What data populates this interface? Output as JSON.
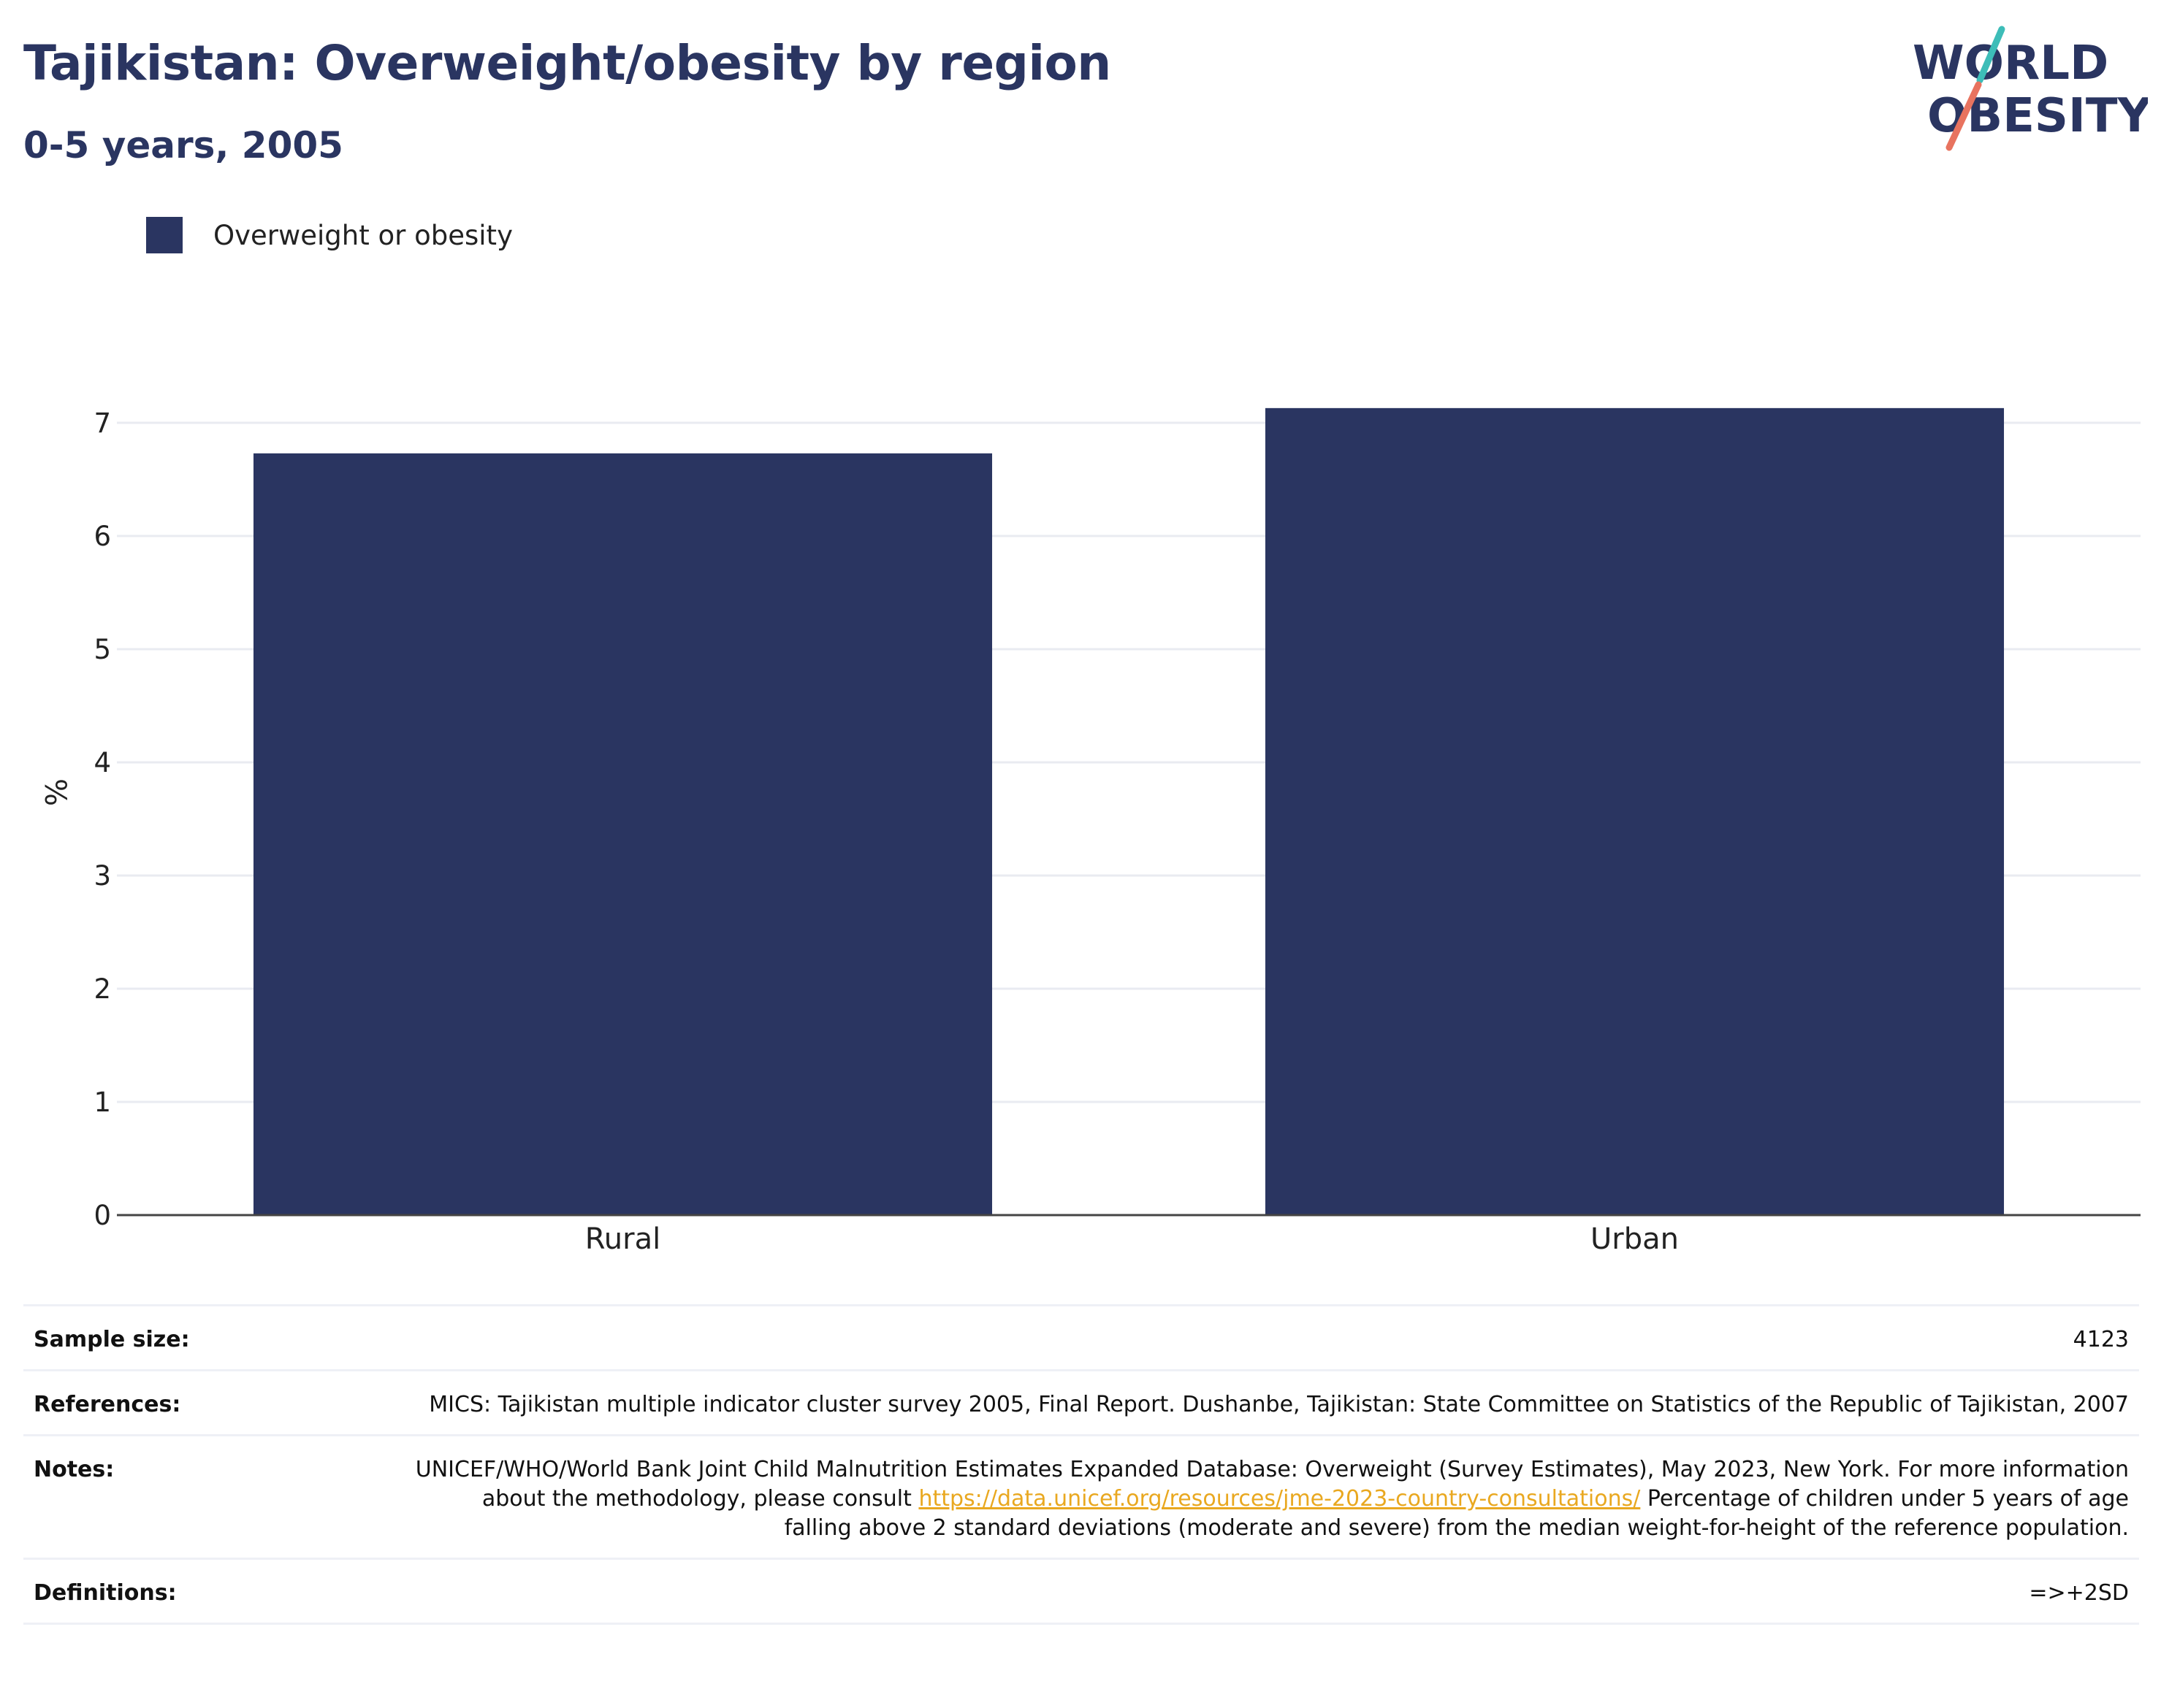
{
  "header": {
    "title": "Tajikistan: Overweight/obesity by region",
    "subtitle": "0-5 years, 2005"
  },
  "logo": {
    "line1": "WORLD",
    "line2": "OBESITY",
    "colors": {
      "text": "#2a3561",
      "slash_top": "#3dbdb8",
      "slash_bottom": "#e8735f"
    }
  },
  "chart_data": {
    "type": "bar",
    "title": "Tajikistan: Overweight/obesity by region",
    "subtitle": "0-5 years, 2005",
    "categories": [
      "Rural",
      "Urban"
    ],
    "series": [
      {
        "name": "Overweight or obesity",
        "values": [
          6.73,
          7.13
        ],
        "color": "#2a3561"
      }
    ],
    "xlabel": "",
    "ylabel": "%",
    "ylim": [
      0,
      7.4
    ],
    "yticks": [
      0,
      1,
      2,
      3,
      4,
      5,
      6,
      7
    ],
    "grid": true,
    "legend_position": "top-left"
  },
  "info": {
    "sample_size": {
      "label": "Sample size:",
      "value": "4123"
    },
    "references": {
      "label": "References:",
      "value": "MICS: Tajikistan multiple indicator cluster survey 2005, Final Report. Dushanbe, Tajikistan: State Committee on Statistics of the Republic of Tajikistan, 2007"
    },
    "notes": {
      "label": "Notes:",
      "text_before": "UNICEF/WHO/World Bank Joint Child Malnutrition Estimates Expanded Database: Overweight (Survey Estimates), May 2023, New York. For more information about the methodology, please consult ",
      "link": "https://data.unicef.org/resources/jme-2023-country-consultations/",
      "text_after": " Percentage of children under 5 years of age falling above 2 standard deviations (moderate and severe) from the median weight-for-height of the reference population."
    },
    "definitions": {
      "label": "Definitions:",
      "value": "=>+2SD"
    }
  }
}
